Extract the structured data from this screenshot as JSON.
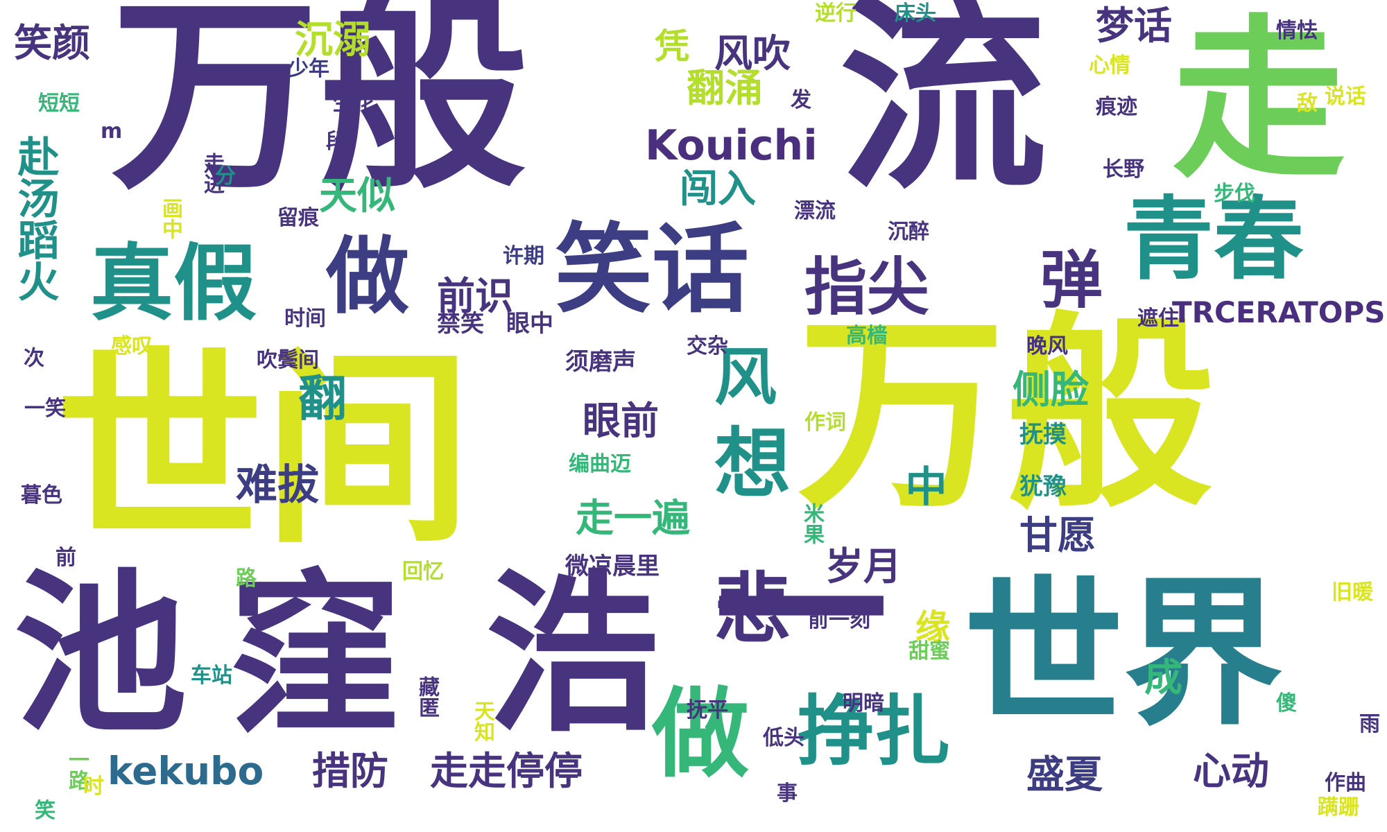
{
  "palette": {
    "dark_purple": "#47337e",
    "purple": "#4a2f7f",
    "indigo": "#3c3d82",
    "steel_blue": "#2d6b8e",
    "teal_blue": "#277f8e",
    "teal": "#1f9188",
    "green": "#35b779",
    "light_green": "#6dcd59",
    "lime": "#b4de2c",
    "yellow": "#d9e520"
  },
  "words": [
    {
      "text": "世间",
      "color": "#d9e520",
      "rank": 1
    },
    {
      "text": "万般",
      "color": "#d9e520",
      "rank": 1
    },
    {
      "text": "万般",
      "color": "#47337e",
      "rank": 1
    },
    {
      "text": "流",
      "color": "#47337e",
      "rank": 1
    },
    {
      "text": "走",
      "color": "#6dcd59",
      "rank": 1
    },
    {
      "text": "池",
      "color": "#47337e",
      "rank": 1
    },
    {
      "text": "窪",
      "color": "#47337e",
      "rank": 1
    },
    {
      "text": "浩",
      "color": "#47337e",
      "rank": 1
    },
    {
      "text": "一",
      "color": "#47337e",
      "rank": 1
    },
    {
      "text": "世界",
      "color": "#277f8e",
      "rank": 1
    },
    {
      "text": "青春",
      "color": "#1f9188",
      "rank": 2
    },
    {
      "text": "笑话",
      "color": "#3c3d82",
      "rank": 2
    },
    {
      "text": "真假",
      "color": "#1f9188",
      "rank": 2
    },
    {
      "text": "做",
      "color": "#3c3d82",
      "rank": 2
    },
    {
      "text": "指尖",
      "color": "#47337e",
      "rank": 2
    },
    {
      "text": "弹",
      "color": "#47337e",
      "rank": 2
    },
    {
      "text": "做",
      "color": "#35b779",
      "rank": 2
    },
    {
      "text": "挣扎",
      "color": "#1f9188",
      "rank": 2
    },
    {
      "text": "风",
      "color": "#1f9188",
      "rank": 2
    },
    {
      "text": "翻",
      "color": "#1f9188",
      "rank": 2
    },
    {
      "text": "想",
      "color": "#1f9188",
      "rank": 2
    },
    {
      "text": "悲",
      "color": "#47337e",
      "rank": 2
    },
    {
      "text": "Kouichi",
      "color": "#4a2f7f",
      "rank": 3
    },
    {
      "text": "kekubo",
      "color": "#2d6b8e",
      "rank": 3
    },
    {
      "text": "TRCERATOPS",
      "color": "#4a2f7f",
      "rank": 3
    },
    {
      "text": "笑颜",
      "color": "#47337e",
      "rank": 3
    },
    {
      "text": "沉溺",
      "color": "#b4de2c",
      "rank": 3
    },
    {
      "text": "梦话",
      "color": "#47337e",
      "rank": 3
    },
    {
      "text": "风吹",
      "color": "#47337e",
      "rank": 3
    },
    {
      "text": "翻涌",
      "color": "#b4de2c",
      "rank": 3
    },
    {
      "text": "凭",
      "color": "#b4de2c",
      "rank": 3
    },
    {
      "text": "天似",
      "color": "#35b779",
      "rank": 3
    },
    {
      "text": "闯入",
      "color": "#1f9188",
      "rank": 3
    },
    {
      "text": "赴汤蹈火",
      "color": "#1f9188",
      "rank": 3
    },
    {
      "text": "前识",
      "color": "#47337e",
      "rank": 3
    },
    {
      "text": "侧脸",
      "color": "#35b779",
      "rank": 3
    },
    {
      "text": "眼前",
      "color": "#47337e",
      "rank": 3
    },
    {
      "text": "难拔",
      "color": "#3c3d82",
      "rank": 3
    },
    {
      "text": "中",
      "color": "#1f9188",
      "rank": 3
    },
    {
      "text": "走一遍",
      "color": "#35b779",
      "rank": 3
    },
    {
      "text": "甘愿",
      "color": "#3c3d82",
      "rank": 3
    },
    {
      "text": "岁月",
      "color": "#47337e",
      "rank": 3
    },
    {
      "text": "缘",
      "color": "#d9e520",
      "rank": 3
    },
    {
      "text": "成",
      "color": "#35b779",
      "rank": 3
    },
    {
      "text": "措防",
      "color": "#47337e",
      "rank": 3
    },
    {
      "text": "走走停停",
      "color": "#47337e",
      "rank": 3
    },
    {
      "text": "盛夏",
      "color": "#3c3d82",
      "rank": 3
    },
    {
      "text": "心动",
      "color": "#47337e",
      "rank": 3
    },
    {
      "text": "须磨声",
      "color": "#47337e",
      "rank": 4
    },
    {
      "text": "禁笑",
      "color": "#47337e",
      "rank": 4
    },
    {
      "text": "眼中",
      "color": "#47337e",
      "rank": 4
    },
    {
      "text": "微凉晨里",
      "color": "#47337e",
      "rank": 4
    },
    {
      "text": "犹豫",
      "color": "#1f9188",
      "rank": 4
    },
    {
      "text": "抚摸",
      "color": "#1f9188",
      "rank": 4
    },
    {
      "text": "少年",
      "color": "#3c3d82",
      "rank": 4
    },
    {
      "text": "生花",
      "color": "#47337e",
      "rank": 4
    },
    {
      "text": "段",
      "color": "#47337e",
      "rank": 4
    },
    {
      "text": "短短",
      "color": "#35b779",
      "rank": 4
    },
    {
      "text": "逆行",
      "color": "#b4de2c",
      "rank": 4
    },
    {
      "text": "床头",
      "color": "#1f9188",
      "rank": 4
    },
    {
      "text": "情怯",
      "color": "#47337e",
      "rank": 4
    },
    {
      "text": "心情",
      "color": "#d9e520",
      "rank": 4
    },
    {
      "text": "发",
      "color": "#47337e",
      "rank": 4
    },
    {
      "text": "痕迹",
      "color": "#47337e",
      "rank": 4
    },
    {
      "text": "说话",
      "color": "#d9e520",
      "rank": 4
    },
    {
      "text": "敌",
      "color": "#d9e520",
      "rank": 4
    },
    {
      "text": "长野",
      "color": "#47337e",
      "rank": 4
    },
    {
      "text": "步伐",
      "color": "#35b779",
      "rank": 4
    },
    {
      "text": "漂流",
      "color": "#47337e",
      "rank": 4
    },
    {
      "text": "沉醉",
      "color": "#47337e",
      "rank": 4
    },
    {
      "text": "许期",
      "color": "#3c3d82",
      "rank": 4
    },
    {
      "text": "时间",
      "color": "#47337e",
      "rank": 4
    },
    {
      "text": "感叹",
      "color": "#d9e520",
      "rank": 4
    },
    {
      "text": "吹鬓间",
      "color": "#47337e",
      "rank": 4
    },
    {
      "text": "交杂",
      "color": "#47337e",
      "rank": 4
    },
    {
      "text": "高樯",
      "color": "#35b779",
      "rank": 4
    },
    {
      "text": "晚风",
      "color": "#47337e",
      "rank": 4
    },
    {
      "text": "遮住",
      "color": "#47337e",
      "rank": 4
    },
    {
      "text": "作词",
      "color": "#b4de2c",
      "rank": 4
    },
    {
      "text": "编曲迈",
      "color": "#35b779",
      "rank": 4
    },
    {
      "text": "暮色",
      "color": "#47337e",
      "rank": 4
    },
    {
      "text": "一笑",
      "color": "#47337e",
      "rank": 4
    },
    {
      "text": "次",
      "color": "#47337e",
      "rank": 4
    },
    {
      "text": "前",
      "color": "#47337e",
      "rank": 4
    },
    {
      "text": "路",
      "color": "#6dcd59",
      "rank": 4
    },
    {
      "text": "回忆",
      "color": "#b4de2c",
      "rank": 4
    },
    {
      "text": "米果",
      "color": "#35b779",
      "rank": 4
    },
    {
      "text": "前一刻",
      "color": "#47337e",
      "rank": 4
    },
    {
      "text": "甜蜜",
      "color": "#6dcd59",
      "rank": 4
    },
    {
      "text": "车站",
      "color": "#1f9188",
      "rank": 4
    },
    {
      "text": "藏匿",
      "color": "#47337e",
      "rank": 4
    },
    {
      "text": "天知",
      "color": "#d9e520",
      "rank": 4
    },
    {
      "text": "抚平",
      "color": "#47337e",
      "rank": 4
    },
    {
      "text": "明暗",
      "color": "#47337e",
      "rank": 4
    },
    {
      "text": "低头",
      "color": "#47337e",
      "rank": 4
    },
    {
      "text": "事",
      "color": "#47337e",
      "rank": 4
    },
    {
      "text": "一路",
      "color": "#6dcd59",
      "rank": 4
    },
    {
      "text": "笑",
      "color": "#35b779",
      "rank": 4
    },
    {
      "text": "时",
      "color": "#d9e520",
      "rank": 4
    },
    {
      "text": "作曲",
      "color": "#47337e",
      "rank": 4
    },
    {
      "text": "蹒跚",
      "color": "#d9e520",
      "rank": 4
    },
    {
      "text": "雨",
      "color": "#47337e",
      "rank": 4
    },
    {
      "text": "傻",
      "color": "#35b779",
      "rank": 4
    },
    {
      "text": "旧暖",
      "color": "#d9e520",
      "rank": 4
    },
    {
      "text": "画中",
      "color": "#d9e520",
      "rank": 4
    },
    {
      "text": "走进",
      "color": "#47337e",
      "rank": 4
    },
    {
      "text": "分",
      "color": "#1f9188",
      "rank": 4
    },
    {
      "text": "留痕",
      "color": "#47337e",
      "rank": 4
    },
    {
      "text": "m",
      "color": "#47337e",
      "rank": 4
    }
  ]
}
